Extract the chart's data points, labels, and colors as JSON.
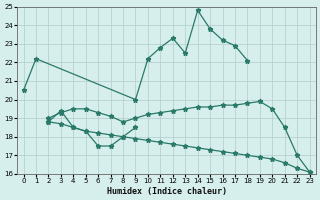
{
  "xlabel": "Humidex (Indice chaleur)",
  "xlim": [
    -0.5,
    23.5
  ],
  "ylim": [
    16,
    25
  ],
  "yticks": [
    16,
    17,
    18,
    19,
    20,
    21,
    22,
    23,
    24,
    25
  ],
  "xticks": [
    0,
    1,
    2,
    3,
    4,
    5,
    6,
    7,
    8,
    9,
    10,
    11,
    12,
    13,
    14,
    15,
    16,
    17,
    18,
    19,
    20,
    21,
    22,
    23
  ],
  "line_color": "#2a7a6a",
  "bg_color": "#d6eeec",
  "grid_color": "#b0cccc",
  "line1_x": [
    0,
    1,
    9,
    10,
    11,
    12,
    13,
    14,
    15,
    16,
    17,
    18
  ],
  "line1_y": [
    20.5,
    22.2,
    20.0,
    22.2,
    22.8,
    23.3,
    22.5,
    24.8,
    23.8,
    23.2,
    22.9,
    22.1
  ],
  "line2_x": [
    2,
    3,
    4,
    5,
    6,
    7,
    8,
    9
  ],
  "line2_y": [
    18.8,
    19.4,
    18.5,
    18.3,
    17.5,
    17.5,
    18.0,
    18.5
  ],
  "line3_x": [
    2,
    3,
    4,
    5,
    6,
    7,
    8,
    9,
    10,
    11,
    12,
    13,
    14,
    15,
    16,
    17,
    18,
    19,
    20,
    21,
    22,
    23
  ],
  "line3_y": [
    19.0,
    19.3,
    19.5,
    19.5,
    19.3,
    19.1,
    18.8,
    19.0,
    19.2,
    19.3,
    19.4,
    19.5,
    19.6,
    19.6,
    19.7,
    19.7,
    19.8,
    19.9,
    19.5,
    18.5,
    17.0,
    16.1
  ],
  "line4_x": [
    2,
    3,
    4,
    5,
    6,
    7,
    8,
    9,
    10,
    11,
    12,
    13,
    14,
    15,
    16,
    17,
    18,
    19,
    20,
    21,
    22,
    23
  ],
  "line4_y": [
    18.8,
    18.7,
    18.5,
    18.3,
    18.2,
    18.1,
    18.0,
    17.9,
    17.8,
    17.7,
    17.6,
    17.5,
    17.4,
    17.3,
    17.2,
    17.1,
    17.0,
    16.9,
    16.8,
    16.6,
    16.3,
    16.1
  ]
}
